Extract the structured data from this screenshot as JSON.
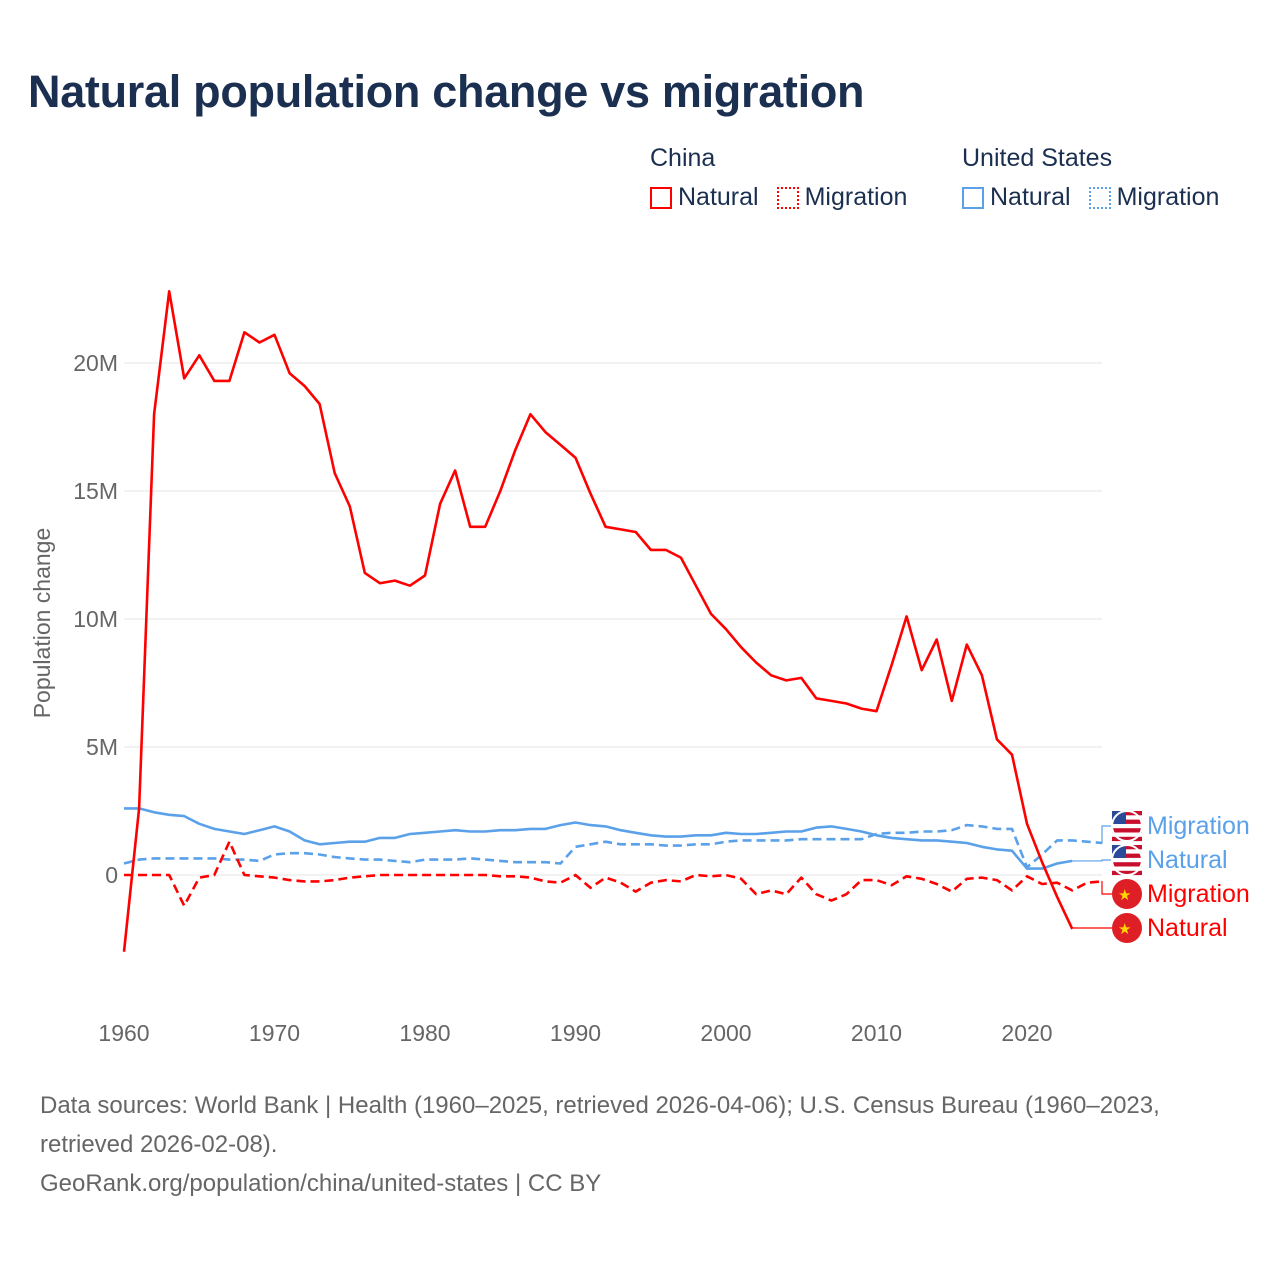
{
  "chart_data": {
    "type": "line",
    "title": "Natural population change vs migration",
    "xlabel": "",
    "ylabel": "Population change",
    "xlim": [
      1960,
      2025
    ],
    "ylim": [
      -4000000,
      23000000
    ],
    "x_ticks": [
      1960,
      1970,
      1980,
      1990,
      2000,
      2010,
      2020
    ],
    "x_tick_labels": [
      "1960",
      "1970",
      "1980",
      "1990",
      "2000",
      "2010",
      "2020"
    ],
    "y_ticks": [
      0,
      5000000,
      10000000,
      15000000,
      20000000
    ],
    "y_tick_labels": [
      "0",
      "5M",
      "10M",
      "15M",
      "20M"
    ],
    "grid": "horizontal",
    "legend": {
      "placement": "top-right",
      "groups": [
        {
          "name": "China",
          "items": [
            "Natural",
            "Migration"
          ]
        },
        {
          "name": "United States",
          "items": [
            "Natural",
            "Migration"
          ]
        }
      ]
    },
    "series": [
      {
        "name": "China Natural",
        "country": "China",
        "label": "Natural",
        "color": "#ff0000",
        "dash": "solid",
        "start_year": 1960,
        "values_millions": [
          -3.0,
          2.6,
          18.0,
          22.8,
          19.4,
          20.3,
          19.3,
          19.3,
          21.2,
          20.8,
          21.1,
          19.6,
          19.1,
          18.4,
          15.7,
          14.4,
          11.8,
          11.4,
          11.5,
          11.3,
          11.7,
          14.5,
          15.8,
          13.6,
          13.6,
          15.0,
          16.6,
          18.0,
          17.3,
          16.8,
          16.3,
          14.9,
          13.6,
          13.5,
          13.4,
          12.7,
          12.7,
          12.4,
          11.3,
          10.2,
          9.6,
          8.9,
          8.3,
          7.8,
          7.6,
          7.7,
          6.9,
          6.8,
          6.7,
          6.5,
          6.4,
          8.2,
          10.1,
          8.0,
          9.2,
          6.8,
          9.0,
          7.8,
          5.3,
          4.7,
          2.0,
          0.5,
          -0.85,
          -2.1
        ]
      },
      {
        "name": "China Migration",
        "country": "China",
        "label": "Migration",
        "color": "#ff0000",
        "dash": "dashed",
        "start_year": 1960,
        "values_millions": [
          0,
          0,
          0,
          0,
          -1.2,
          -0.1,
          0,
          1.3,
          0,
          -0.05,
          -0.1,
          -0.2,
          -0.25,
          -0.25,
          -0.2,
          -0.1,
          -0.05,
          0,
          0,
          0,
          0,
          0,
          0,
          0,
          0,
          -0.05,
          -0.05,
          -0.1,
          -0.25,
          -0.3,
          0,
          -0.5,
          -0.1,
          -0.3,
          -0.65,
          -0.3,
          -0.2,
          -0.25,
          0,
          -0.05,
          0,
          -0.15,
          -0.75,
          -0.6,
          -0.75,
          -0.1,
          -0.75,
          -1.0,
          -0.75,
          -0.2,
          -0.2,
          -0.4,
          -0.05,
          -0.15,
          -0.35,
          -0.65,
          -0.15,
          -0.1,
          -0.2,
          -0.6,
          -0.05,
          -0.35,
          -0.3,
          -0.6,
          -0.3,
          -0.25
        ]
      },
      {
        "name": "United States Natural",
        "country": "United States",
        "label": "Natural",
        "color": "#5aa1ea",
        "dash": "solid",
        "start_year": 1960,
        "values_millions": [
          2.6,
          2.6,
          2.45,
          2.35,
          2.3,
          2.0,
          1.8,
          1.7,
          1.6,
          1.75,
          1.9,
          1.7,
          1.35,
          1.2,
          1.25,
          1.3,
          1.3,
          1.45,
          1.45,
          1.6,
          1.65,
          1.7,
          1.75,
          1.7,
          1.7,
          1.75,
          1.75,
          1.8,
          1.8,
          1.95,
          2.05,
          1.95,
          1.9,
          1.75,
          1.65,
          1.55,
          1.5,
          1.5,
          1.55,
          1.55,
          1.65,
          1.6,
          1.6,
          1.65,
          1.7,
          1.7,
          1.85,
          1.9,
          1.8,
          1.7,
          1.55,
          1.45,
          1.4,
          1.35,
          1.35,
          1.3,
          1.25,
          1.1,
          1.0,
          0.95,
          0.25,
          0.25,
          0.45,
          0.55
        ]
      },
      {
        "name": "United States Migration",
        "country": "United States",
        "label": "Migration",
        "color": "#5aa1ea",
        "dash": "dashed",
        "start_year": 1960,
        "values_millions": [
          0.45,
          0.6,
          0.65,
          0.65,
          0.65,
          0.65,
          0.65,
          0.6,
          0.6,
          0.55,
          0.8,
          0.85,
          0.85,
          0.8,
          0.7,
          0.65,
          0.6,
          0.6,
          0.55,
          0.5,
          0.6,
          0.6,
          0.6,
          0.65,
          0.6,
          0.55,
          0.5,
          0.5,
          0.5,
          0.45,
          1.1,
          1.2,
          1.3,
          1.2,
          1.2,
          1.2,
          1.15,
          1.15,
          1.2,
          1.2,
          1.3,
          1.35,
          1.35,
          1.35,
          1.35,
          1.4,
          1.4,
          1.4,
          1.4,
          1.4,
          1.6,
          1.65,
          1.65,
          1.7,
          1.7,
          1.75,
          1.95,
          1.9,
          1.8,
          1.8,
          0.3,
          0.8,
          1.35,
          1.35,
          1.3,
          1.25
        ]
      }
    ],
    "end_labels": [
      {
        "text": "Migration",
        "country": "United States",
        "color": "#5aa1ea",
        "flag": "us-flag-icon"
      },
      {
        "text": "Natural",
        "country": "United States",
        "color": "#5aa1ea",
        "flag": "us-flag-icon"
      },
      {
        "text": "Migration",
        "country": "China",
        "color": "#ff0000",
        "flag": "china-flag-icon"
      },
      {
        "text": "Natural",
        "country": "China",
        "color": "#ff0000",
        "flag": "china-flag-icon"
      }
    ]
  },
  "legend": {
    "china": {
      "heading": "China",
      "natural": "Natural",
      "migration": "Migration"
    },
    "us": {
      "heading": "United States",
      "natural": "Natural",
      "migration": "Migration"
    }
  },
  "footer": {
    "sources": "Data sources: World Bank | Health (1960–2025, retrieved 2026-04-06); U.S. Census Bureau (1960–2023, retrieved 2026-02-08).",
    "credit": "GeoRank.org/population/china/united-states | CC BY"
  }
}
